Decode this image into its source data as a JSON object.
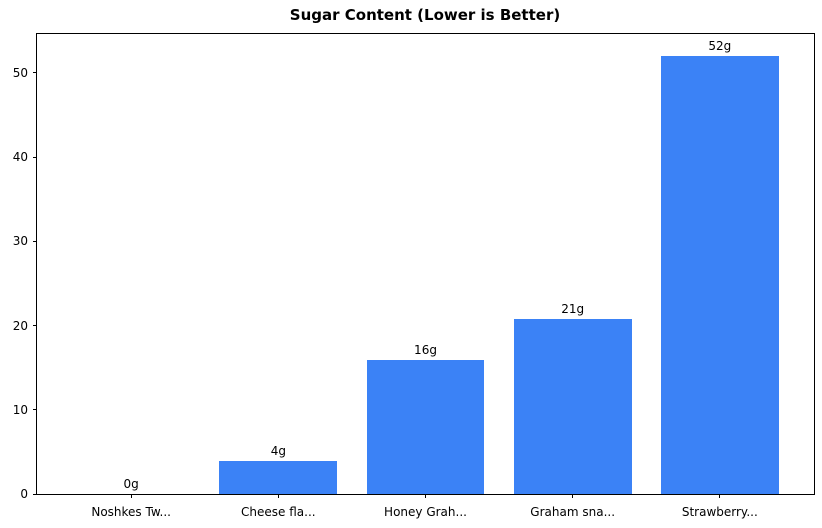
{
  "chart_data": {
    "type": "bar",
    "title": "Sugar Content (Lower is Better)",
    "categories": [
      "Noshkes Tw...",
      "Cheese fla...",
      "Honey Grah...",
      "Graham sna...",
      "Strawberry..."
    ],
    "values": [
      0,
      3.9,
      15.9,
      20.8,
      52
    ],
    "bar_labels": [
      "0g",
      "4g",
      "16g",
      "21g",
      "52g"
    ],
    "xlabel": "",
    "ylabel": "",
    "ylim": [
      0,
      54.6
    ],
    "yticks": [
      0,
      10,
      20,
      30,
      40,
      50
    ],
    "grid": false,
    "legend": false,
    "bar_width_fraction": 0.8,
    "x_unit_span": 5.28,
    "first_bar_center_offset": 0.64
  },
  "colors": {
    "bar": "#3b82f6",
    "text": "#000000",
    "axes": "#000000",
    "background": "#ffffff"
  }
}
